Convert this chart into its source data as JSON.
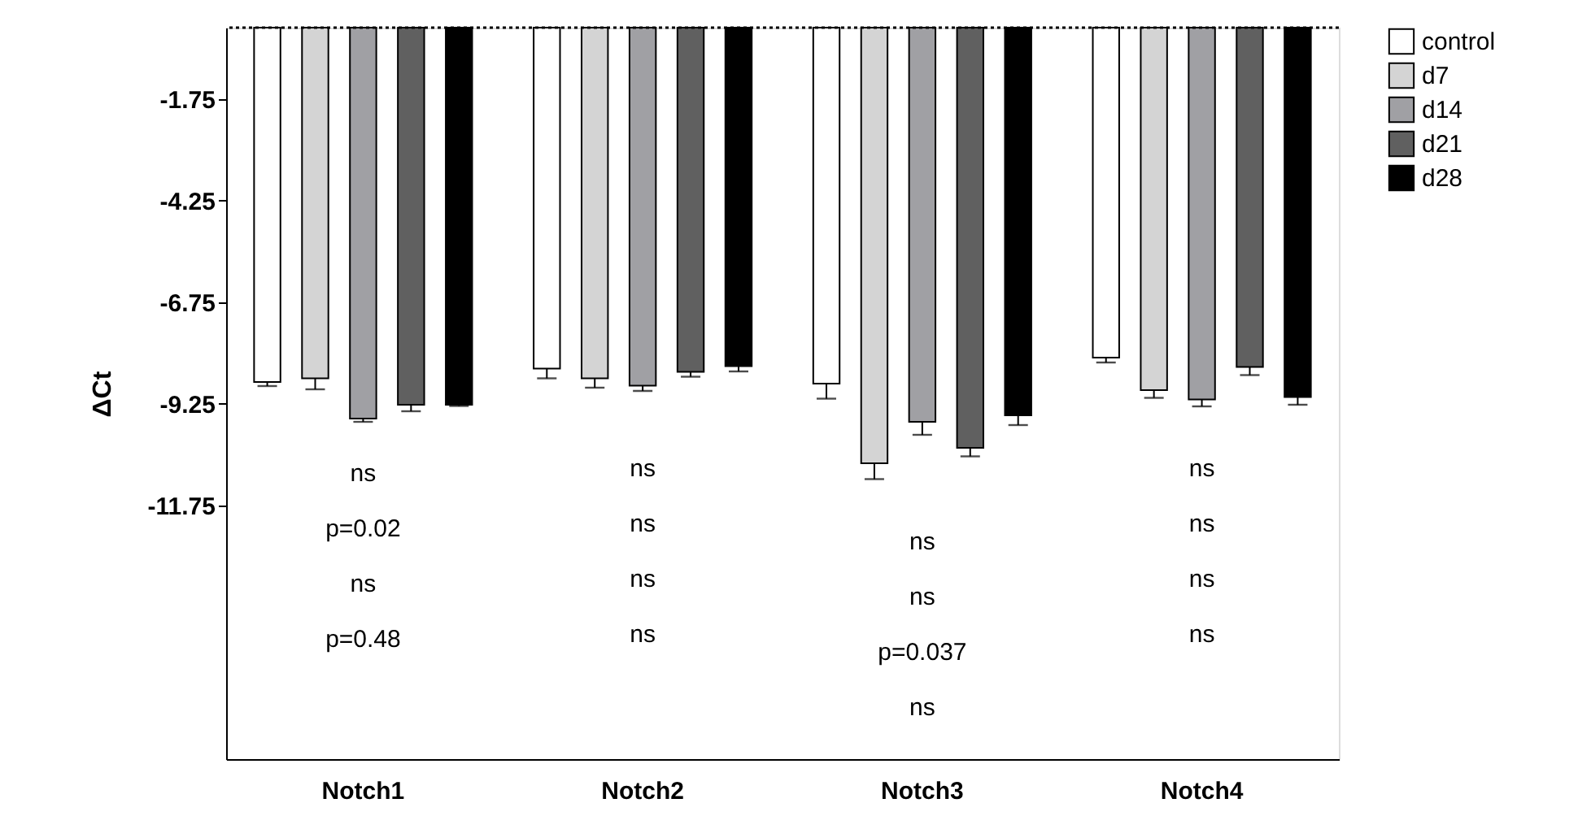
{
  "chart_data": {
    "type": "bar",
    "ylabel": "ΔCt",
    "categories": [
      "Notch1",
      "Notch2",
      "Notch3",
      "Notch4"
    ],
    "series": [
      {
        "name": "control",
        "color": "#ffffff",
        "values": [
          -8.72,
          -8.39,
          -8.76,
          -8.12
        ],
        "errors": [
          0.1,
          0.24,
          0.37,
          0.12
        ]
      },
      {
        "name": "d7",
        "color": "#d4d4d4",
        "values": [
          -8.63,
          -8.63,
          -10.72,
          -8.92
        ],
        "errors": [
          0.27,
          0.23,
          0.39,
          0.19
        ]
      },
      {
        "name": "d14",
        "color": "#a0a0a4",
        "values": [
          -9.62,
          -8.81,
          -9.7,
          -9.15
        ],
        "errors": [
          0.08,
          0.13,
          0.32,
          0.17
        ]
      },
      {
        "name": "d21",
        "color": "#606060",
        "values": [
          -9.28,
          -8.47,
          -10.34,
          -8.35
        ],
        "errors": [
          0.16,
          0.12,
          0.21,
          0.2
        ]
      },
      {
        "name": "d28",
        "color": "#000000",
        "values": [
          -9.28,
          -8.33,
          -9.54,
          -9.09
        ],
        "errors": [
          0.03,
          0.13,
          0.24,
          0.19
        ]
      }
    ],
    "ylim": [
      -18,
      0
    ],
    "yticks": [
      -1.75,
      -4.25,
      -6.75,
      -9.25,
      -11.75
    ],
    "ref_lines": [
      {
        "axis": "y",
        "value": 0,
        "line_style": "dotted"
      }
    ],
    "grid": false,
    "legend": "top right",
    "annotations": [
      "ns",
      "p=0.02",
      "ns",
      "p=0.48",
      "ns",
      "ns",
      "ns",
      "ns",
      "ns",
      "ns",
      "p=0.037",
      "ns",
      "ns",
      "ns",
      "ns",
      "ns"
    ]
  }
}
